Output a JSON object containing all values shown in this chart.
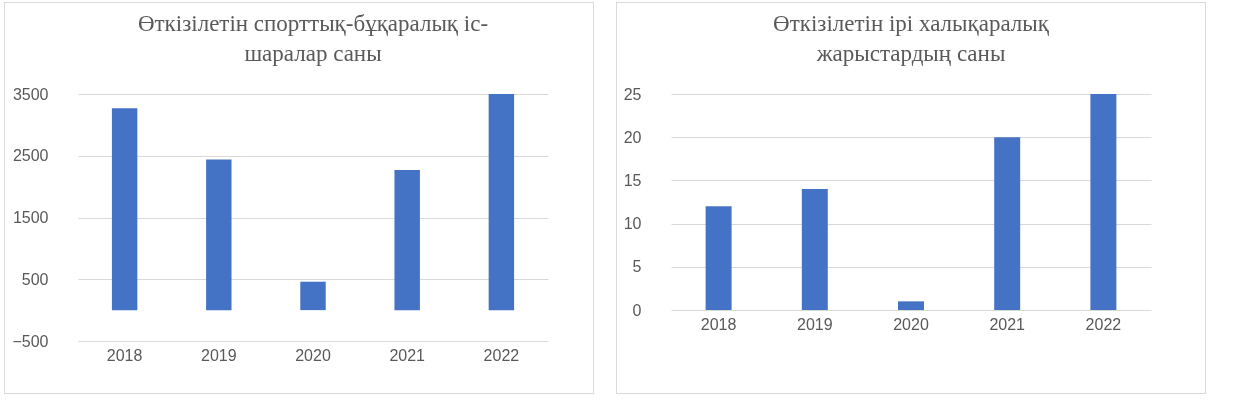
{
  "chart_data": [
    {
      "type": "bar",
      "title": "Өткізілетін спорттық-бұқаралық іс-шаралар саны",
      "categories": [
        "2018",
        "2019",
        "2020",
        "2021",
        "2022"
      ],
      "values": [
        3270,
        2440,
        460,
        2270,
        3500
      ],
      "color": "#4472c4",
      "ylim": [
        -500,
        3500
      ],
      "yticks": [
        -500,
        500,
        1500,
        2500,
        3500
      ],
      "grid": true
    },
    {
      "type": "bar",
      "title": "Өткізілетін ірі халықаралық жарыстардың саны",
      "categories": [
        "2018",
        "2019",
        "2020",
        "2021",
        "2022"
      ],
      "values": [
        12,
        14,
        1,
        20,
        25
      ],
      "color": "#4472c4",
      "ylim": [
        0,
        25
      ],
      "yticks": [
        0,
        5,
        10,
        15,
        20,
        25
      ],
      "grid": true
    }
  ]
}
